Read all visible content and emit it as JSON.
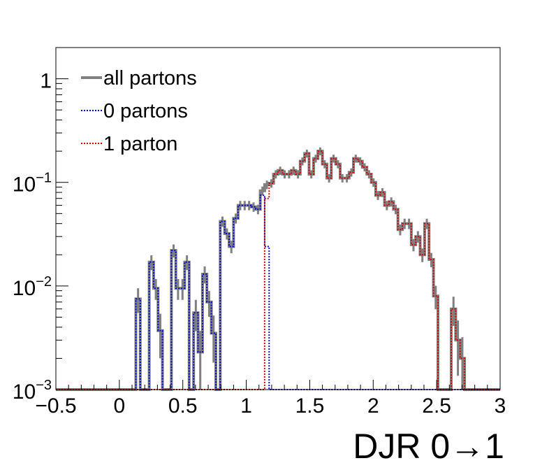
{
  "chart_data": {
    "type": "line",
    "title": "",
    "xlabel": "DJR 0→1",
    "ylabel": "",
    "xlim": [
      -0.5,
      3
    ],
    "ylim": [
      0.001,
      2
    ],
    "yscale": "log",
    "grid": false,
    "legend_position": "top-left",
    "x_ticks": [
      {
        "value": -0.5,
        "label": "−0.5"
      },
      {
        "value": 0,
        "label": "0"
      },
      {
        "value": 0.5,
        "label": "0.5"
      },
      {
        "value": 1,
        "label": "1"
      },
      {
        "value": 1.5,
        "label": "1.5"
      },
      {
        "value": 2,
        "label": "2"
      },
      {
        "value": 2.5,
        "label": "2.5"
      },
      {
        "value": 3,
        "label": "3"
      }
    ],
    "y_ticks": [
      {
        "value": 0.001,
        "base": "10",
        "exp": "−3"
      },
      {
        "value": 0.01,
        "base": "10",
        "exp": "−2"
      },
      {
        "value": 0.1,
        "base": "10",
        "exp": "−1"
      },
      {
        "value": 1,
        "base": "1",
        "exp": ""
      }
    ],
    "bin_edges": [
      -0.5,
      -0.465,
      -0.43,
      -0.395,
      -0.36,
      -0.325,
      -0.29,
      -0.255,
      -0.22,
      -0.185,
      -0.15,
      -0.115,
      -0.08,
      -0.045,
      -0.01,
      0.025,
      0.06,
      0.095,
      0.13,
      0.165,
      0.2,
      0.235,
      0.27,
      0.305,
      0.34,
      0.375,
      0.41,
      0.445,
      0.48,
      0.515,
      0.55,
      0.585,
      0.62,
      0.655,
      0.69,
      0.725,
      0.76,
      0.795,
      0.83,
      0.865,
      0.9,
      0.935,
      0.97,
      1.005,
      1.04,
      1.075,
      1.11,
      1.145,
      1.18,
      1.215,
      1.25,
      1.285,
      1.32,
      1.355,
      1.39,
      1.425,
      1.46,
      1.495,
      1.53,
      1.565,
      1.6,
      1.635,
      1.67,
      1.705,
      1.74,
      1.775,
      1.81,
      1.845,
      1.88,
      1.915,
      1.95,
      1.985,
      2.02,
      2.055,
      2.09,
      2.125,
      2.16,
      2.195,
      2.23,
      2.265,
      2.3,
      2.335,
      2.37,
      2.405,
      2.44,
      2.475,
      2.51,
      2.545,
      2.58,
      2.615,
      2.65,
      2.685,
      2.72,
      2.755,
      2.79,
      2.825,
      2.86,
      2.895,
      2.93,
      2.965,
      3.0
    ],
    "series": [
      {
        "name": "all partons",
        "color": "#808080",
        "style": "solid",
        "values": [
          0.001,
          0.001,
          0.001,
          0.001,
          0.001,
          0.001,
          0.001,
          0.001,
          0.001,
          0.001,
          0.001,
          0.001,
          0.001,
          0.001,
          0.001,
          0.001,
          0.001,
          0.001,
          0.0075,
          0.001,
          0.001,
          0.017,
          0.0095,
          0.0037,
          0.001,
          0.001,
          0.022,
          0.0095,
          0.0095,
          0.017,
          0.001,
          0.0055,
          0.0023,
          0.013,
          0.007,
          0.0035,
          0.001,
          0.042,
          0.032,
          0.024,
          0.045,
          0.06,
          0.06,
          0.06,
          0.058,
          0.055,
          0.083,
          0.095,
          0.098,
          0.12,
          0.13,
          0.12,
          0.12,
          0.13,
          0.12,
          0.16,
          0.19,
          0.12,
          0.17,
          0.2,
          0.15,
          0.11,
          0.17,
          0.15,
          0.11,
          0.11,
          0.125,
          0.17,
          0.16,
          0.14,
          0.12,
          0.1,
          0.075,
          0.08,
          0.06,
          0.065,
          0.055,
          0.035,
          0.04,
          0.04,
          0.025,
          0.03,
          0.02,
          0.04,
          0.018,
          0.008,
          0.001,
          0.001,
          0.001,
          0.006,
          0.003,
          0.002,
          0.001,
          0.001,
          0.001,
          0.001,
          0.001,
          0.001,
          0.001,
          0.001
        ]
      },
      {
        "name": "0 partons",
        "color": "#0000cc",
        "style": "dotted",
        "values": [
          0.001,
          0.001,
          0.001,
          0.001,
          0.001,
          0.001,
          0.001,
          0.001,
          0.001,
          0.001,
          0.001,
          0.001,
          0.001,
          0.001,
          0.001,
          0.001,
          0.001,
          0.001,
          0.0075,
          0.001,
          0.001,
          0.017,
          0.0095,
          0.0037,
          0.001,
          0.001,
          0.022,
          0.0095,
          0.0095,
          0.017,
          0.001,
          0.0055,
          0.0023,
          0.013,
          0.007,
          0.0035,
          0.001,
          0.042,
          0.032,
          0.024,
          0.045,
          0.06,
          0.06,
          0.06,
          0.058,
          0.055,
          0.075,
          0.024,
          0.001,
          0.001,
          0.001,
          0.001,
          0.001,
          0.001,
          0.001,
          0.001,
          0.001,
          0.001,
          0.001,
          0.001,
          0.001,
          0.001,
          0.001,
          0.001,
          0.001,
          0.001,
          0.001,
          0.001,
          0.001,
          0.001,
          0.001,
          0.001,
          0.001,
          0.001,
          0.001,
          0.001,
          0.001,
          0.001,
          0.001,
          0.001,
          0.001,
          0.001,
          0.001,
          0.001,
          0.001,
          0.001,
          0.001,
          0.001,
          0.001,
          0.001,
          0.001,
          0.001,
          0.001,
          0.001,
          0.001,
          0.001,
          0.001,
          0.001,
          0.001,
          0.001
        ]
      },
      {
        "name": "1 parton",
        "color": "#cc0000",
        "style": "dotted",
        "values": [
          0.001,
          0.001,
          0.001,
          0.001,
          0.001,
          0.001,
          0.001,
          0.001,
          0.001,
          0.001,
          0.001,
          0.001,
          0.001,
          0.001,
          0.001,
          0.001,
          0.001,
          0.001,
          0.001,
          0.001,
          0.001,
          0.001,
          0.001,
          0.001,
          0.001,
          0.001,
          0.001,
          0.001,
          0.001,
          0.001,
          0.001,
          0.001,
          0.001,
          0.001,
          0.001,
          0.001,
          0.001,
          0.001,
          0.001,
          0.001,
          0.001,
          0.001,
          0.001,
          0.001,
          0.001,
          0.001,
          0.001,
          0.07,
          0.098,
          0.12,
          0.13,
          0.12,
          0.12,
          0.13,
          0.12,
          0.16,
          0.19,
          0.12,
          0.17,
          0.2,
          0.15,
          0.11,
          0.17,
          0.15,
          0.11,
          0.11,
          0.125,
          0.17,
          0.16,
          0.14,
          0.12,
          0.1,
          0.075,
          0.08,
          0.06,
          0.065,
          0.055,
          0.035,
          0.04,
          0.04,
          0.025,
          0.03,
          0.02,
          0.04,
          0.018,
          0.008,
          0.001,
          0.001,
          0.001,
          0.006,
          0.003,
          0.002,
          0.001,
          0.001,
          0.001,
          0.001,
          0.001,
          0.001,
          0.001,
          0.001
        ]
      }
    ]
  }
}
